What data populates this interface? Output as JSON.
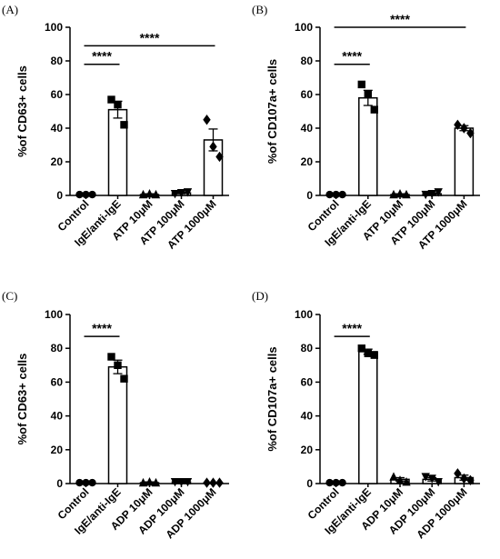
{
  "figure": {
    "colors": {
      "ink": "#000000",
      "bar_fill": "#ffffff"
    }
  },
  "chart_data": [
    {
      "panel_label": "(A)",
      "type": "bar",
      "ylabel": "%of CD63+ cells",
      "ylim": [
        0,
        100
      ],
      "yticks": [
        0,
        20,
        40,
        60,
        80,
        100
      ],
      "categories": [
        "Control",
        "IgE/anti-IgE",
        "ATP 10μM",
        "ATP 100μM",
        "ATP 1000μM"
      ],
      "means": [
        0.5,
        51,
        0.5,
        1.5,
        33
      ],
      "sem": [
        0,
        5,
        0.5,
        0.5,
        6.5
      ],
      "markers": [
        "circle",
        "square",
        "triangle",
        "triangle-down",
        "diamond"
      ],
      "points": [
        [
          0.5,
          0.5,
          0.5
        ],
        [
          57,
          54,
          42
        ],
        [
          0.5,
          1,
          0.5
        ],
        [
          1,
          1.5,
          2
        ],
        [
          45,
          29,
          23
        ]
      ],
      "significance": [
        {
          "label": "****",
          "from": 0,
          "to": 1,
          "y": 78
        },
        {
          "label": "****",
          "from": 0,
          "to": 4,
          "y": 89
        }
      ]
    },
    {
      "panel_label": "(B)",
      "type": "bar",
      "ylabel": "%of CD107a+ cells",
      "ylim": [
        0,
        100
      ],
      "yticks": [
        0,
        20,
        40,
        60,
        80,
        100
      ],
      "categories": [
        "Control",
        "IgE/anti-IgE",
        "ATP 10μM",
        "ATP 100μM",
        "ATP 1000μM"
      ],
      "means": [
        0.5,
        58,
        0.5,
        1,
        40
      ],
      "sem": [
        0,
        4.5,
        0.5,
        0.5,
        1.5
      ],
      "markers": [
        "circle",
        "square",
        "triangle",
        "triangle-down",
        "diamond"
      ],
      "points": [
        [
          0.5,
          0.5,
          0.5
        ],
        [
          66,
          60,
          51
        ],
        [
          0.5,
          1,
          0.5
        ],
        [
          0.5,
          1,
          2
        ],
        [
          42,
          40,
          37
        ]
      ],
      "significance": [
        {
          "label": "****",
          "from": 0,
          "to": 1,
          "y": 78
        },
        {
          "label": "****",
          "from": 0,
          "to": 4,
          "y": 100
        }
      ]
    },
    {
      "panel_label": "(C)",
      "type": "bar",
      "ylabel": "%of CD63+ cells",
      "ylim": [
        0,
        100
      ],
      "yticks": [
        0,
        20,
        40,
        60,
        80,
        100
      ],
      "categories": [
        "Control",
        "IgE/anti-IgE",
        "ADP 10μM",
        "ADP 100μM",
        "ADP 1000μM"
      ],
      "means": [
        0.5,
        69,
        0.5,
        1,
        0.5
      ],
      "sem": [
        0,
        4,
        0.5,
        0.5,
        0.2
      ],
      "markers": [
        "circle",
        "square",
        "triangle",
        "triangle-down",
        "diamond"
      ],
      "points": [
        [
          0.5,
          0.5,
          0.5
        ],
        [
          75,
          70,
          62
        ],
        [
          0.5,
          1,
          0.5
        ],
        [
          1,
          1,
          1
        ],
        [
          0.5,
          0.5,
          0.5
        ]
      ],
      "significance": [
        {
          "label": "****",
          "from": 0,
          "to": 1,
          "y": 87
        }
      ]
    },
    {
      "panel_label": "(D)",
      "type": "bar",
      "ylabel": "%of CD107a+ cells",
      "ylim": [
        0,
        100
      ],
      "yticks": [
        0,
        20,
        40,
        60,
        80,
        100
      ],
      "categories": [
        "Control",
        "IgE/anti-IgE",
        "ADP 10μM",
        "ADP 100μM",
        "ADP 1000μM"
      ],
      "means": [
        0.5,
        78,
        2.5,
        2.5,
        3.5
      ],
      "sem": [
        0,
        1.5,
        1,
        1,
        1.5
      ],
      "markers": [
        "circle",
        "square",
        "triangle",
        "triangle-down",
        "diamond"
      ],
      "points": [
        [
          0.5,
          0.5,
          0.5
        ],
        [
          80,
          77,
          76
        ],
        [
          4,
          2,
          1
        ],
        [
          4,
          3,
          1
        ],
        [
          6,
          3,
          2
        ]
      ],
      "significance": [
        {
          "label": "****",
          "from": 0,
          "to": 1,
          "y": 87
        }
      ]
    }
  ]
}
